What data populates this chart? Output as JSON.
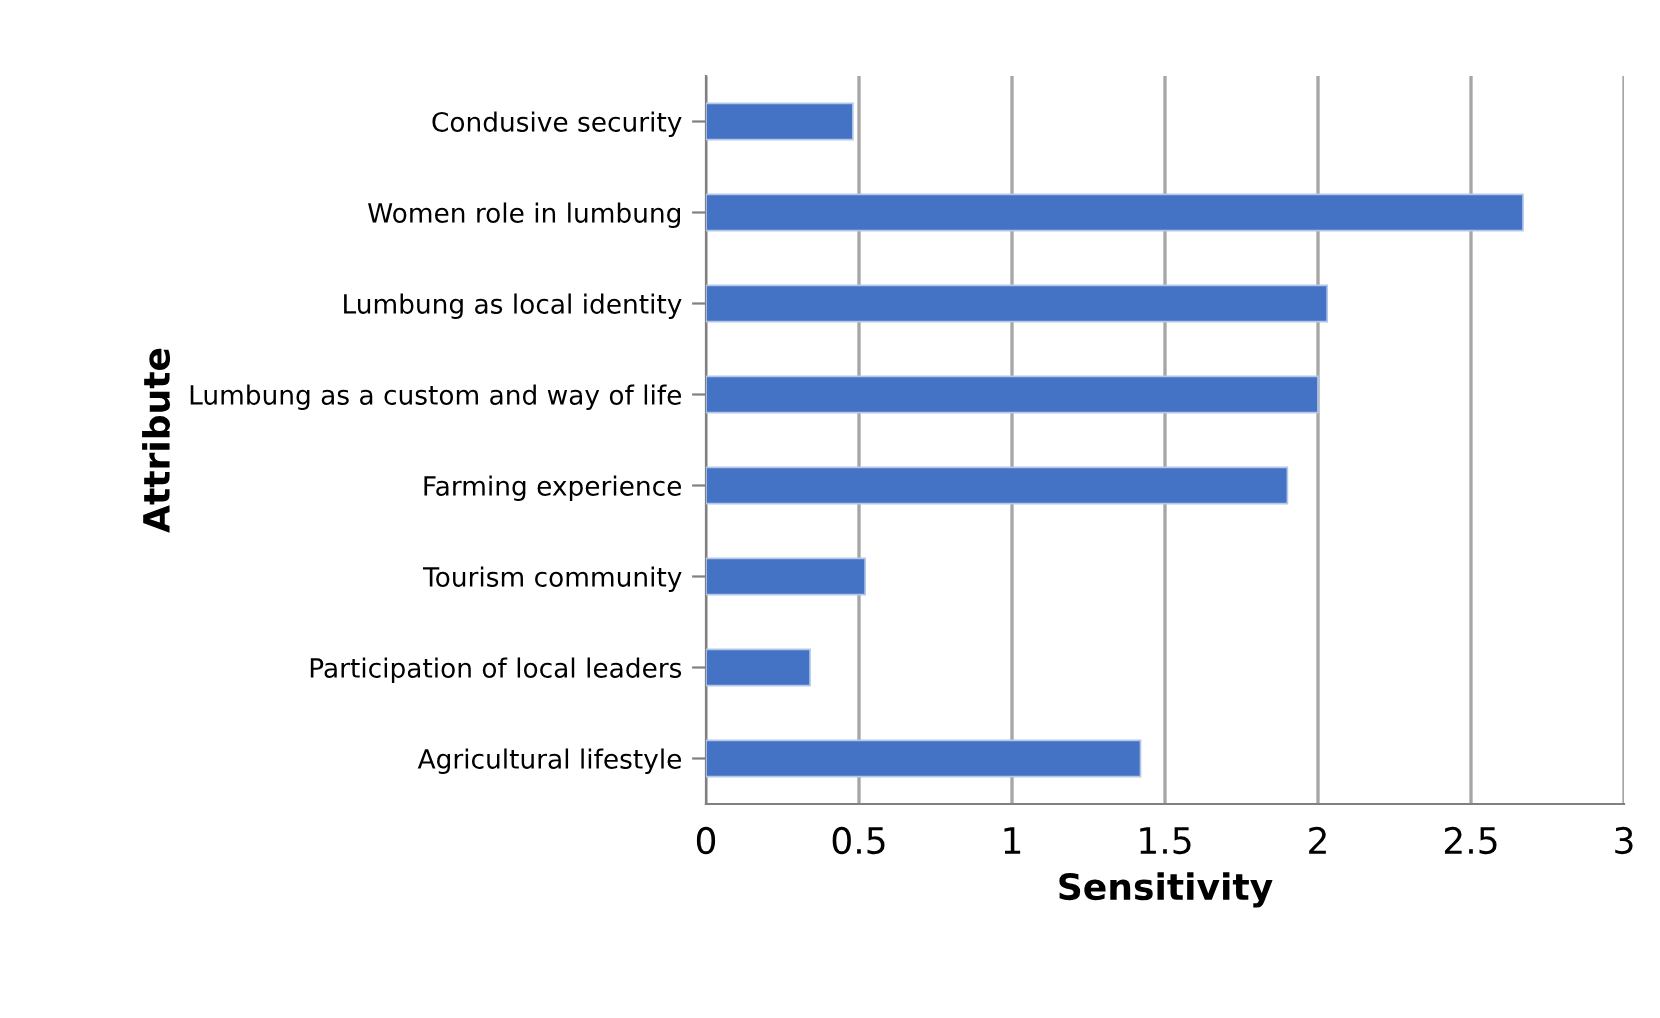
{
  "chart_data": {
    "type": "bar",
    "orientation": "horizontal",
    "xlabel": "Sensitivity",
    "ylabel": "Attribute",
    "categories": [
      "Condusive security",
      "Women role in lumbung",
      "Lumbung as local identity",
      "Lumbung as a custom and way of life",
      "Farming experience",
      "Tourism community",
      "Participation of local leaders",
      "Agricultural lifestyle"
    ],
    "values": [
      0.48,
      2.67,
      2.03,
      2.0,
      1.9,
      0.52,
      0.34,
      1.42
    ],
    "color": "#4472c4",
    "xlim": [
      0,
      3
    ],
    "xticks": [
      0,
      0.5,
      1,
      1.5,
      2,
      2.5,
      3
    ],
    "grid": "x"
  }
}
